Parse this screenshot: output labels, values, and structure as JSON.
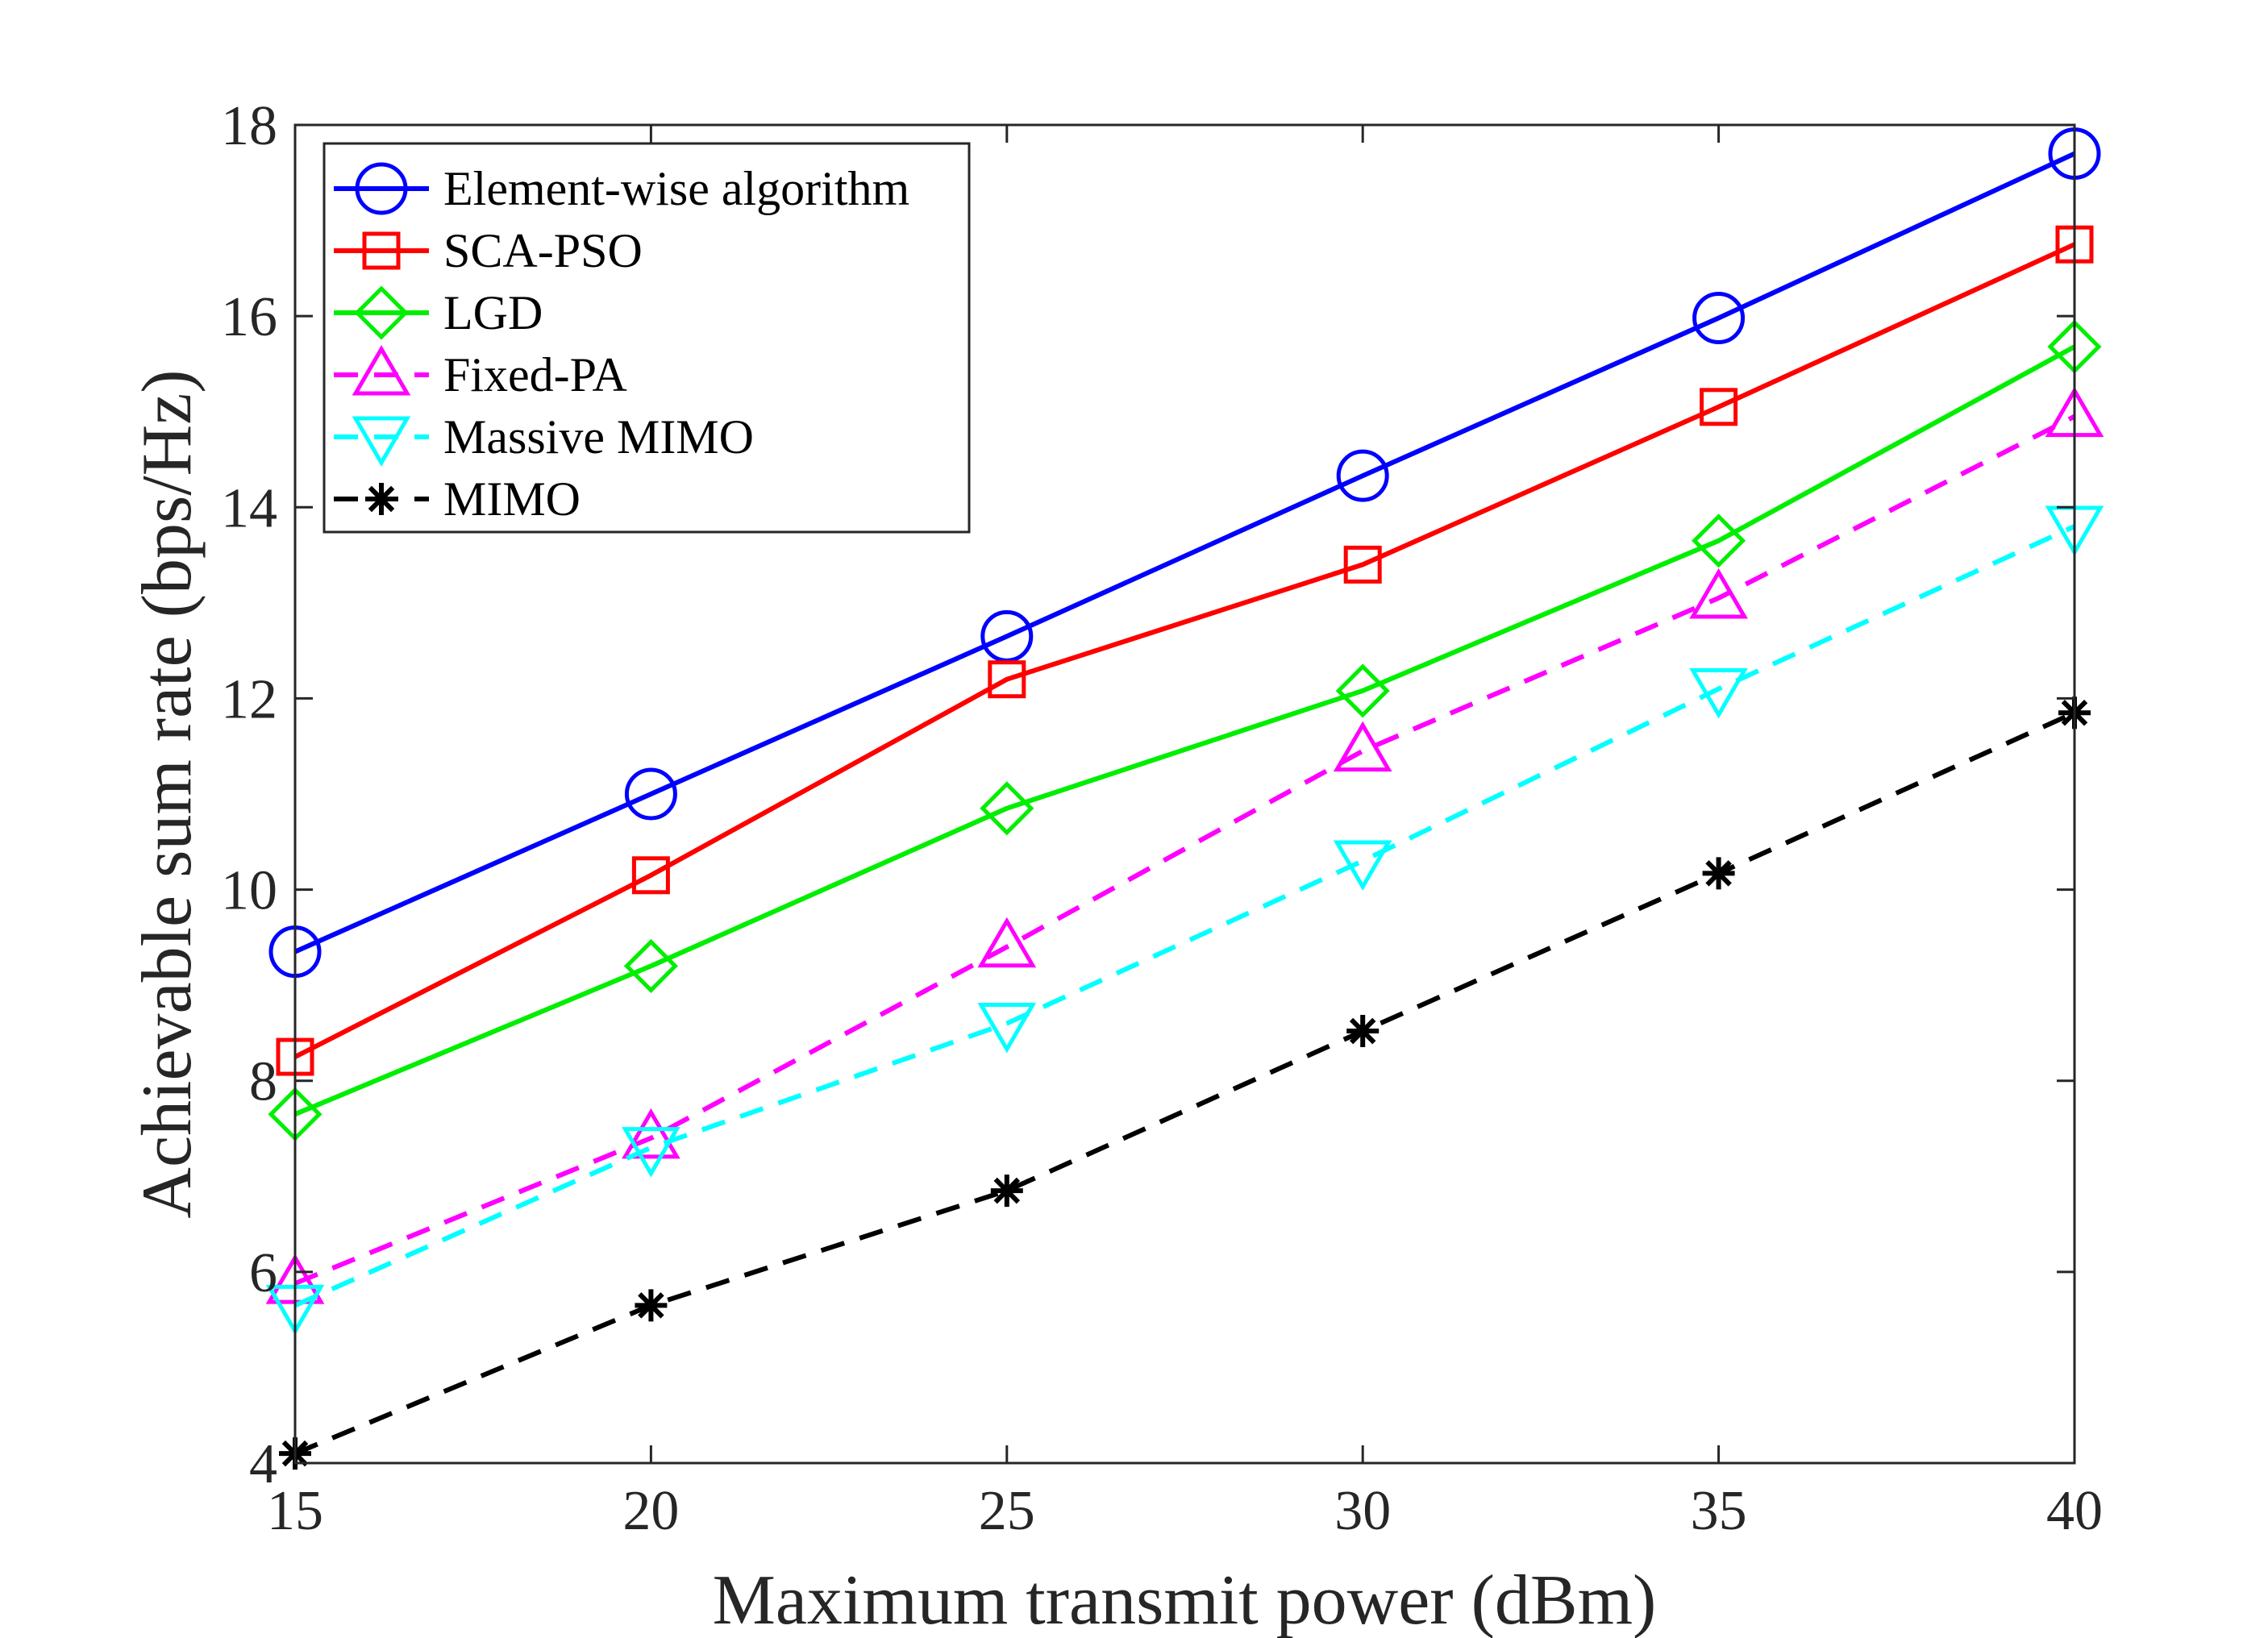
{
  "chart_data": {
    "type": "line",
    "title": "",
    "xlabel": "Maximum transmit power (dBm)",
    "ylabel": "Achievable sum rate (bps/Hz)",
    "x": [
      15,
      20,
      25,
      30,
      35,
      40
    ],
    "xlim": [
      15,
      40
    ],
    "ylim": [
      4,
      18
    ],
    "xticks": [
      15,
      20,
      25,
      30,
      35,
      40
    ],
    "yticks": [
      4,
      6,
      8,
      10,
      12,
      14,
      16,
      18
    ],
    "grid": false,
    "legend_position": "top-left",
    "series": [
      {
        "name": "Element-wise algorithm",
        "values": [
          9.35,
          11.0,
          12.65,
          14.33,
          15.98,
          17.7
        ],
        "color": "#0000ff",
        "dash": "solid",
        "marker": "circle"
      },
      {
        "name": "SCA-PSO",
        "values": [
          8.25,
          10.15,
          12.2,
          13.4,
          15.05,
          16.75
        ],
        "color": "#ff0000",
        "dash": "solid",
        "marker": "square"
      },
      {
        "name": "LGD",
        "values": [
          7.65,
          9.2,
          10.85,
          12.08,
          13.65,
          15.68
        ],
        "color": "#00ee00",
        "dash": "solid",
        "marker": "diamond"
      },
      {
        "name": "Fixed-PA",
        "values": [
          5.88,
          7.4,
          9.4,
          11.45,
          13.05,
          14.95
        ],
        "color": "#ff00ff",
        "dash": "dashed",
        "marker": "triangle-up"
      },
      {
        "name": "Massive MIMO",
        "values": [
          5.65,
          7.3,
          8.6,
          10.3,
          12.1,
          13.8
        ],
        "color": "#00ffff",
        "dash": "dashed",
        "marker": "triangle-down"
      },
      {
        "name": "MIMO",
        "values": [
          4.1,
          5.65,
          6.85,
          8.52,
          10.17,
          11.85
        ],
        "color": "#000000",
        "dash": "dashed",
        "marker": "asterisk"
      }
    ]
  }
}
